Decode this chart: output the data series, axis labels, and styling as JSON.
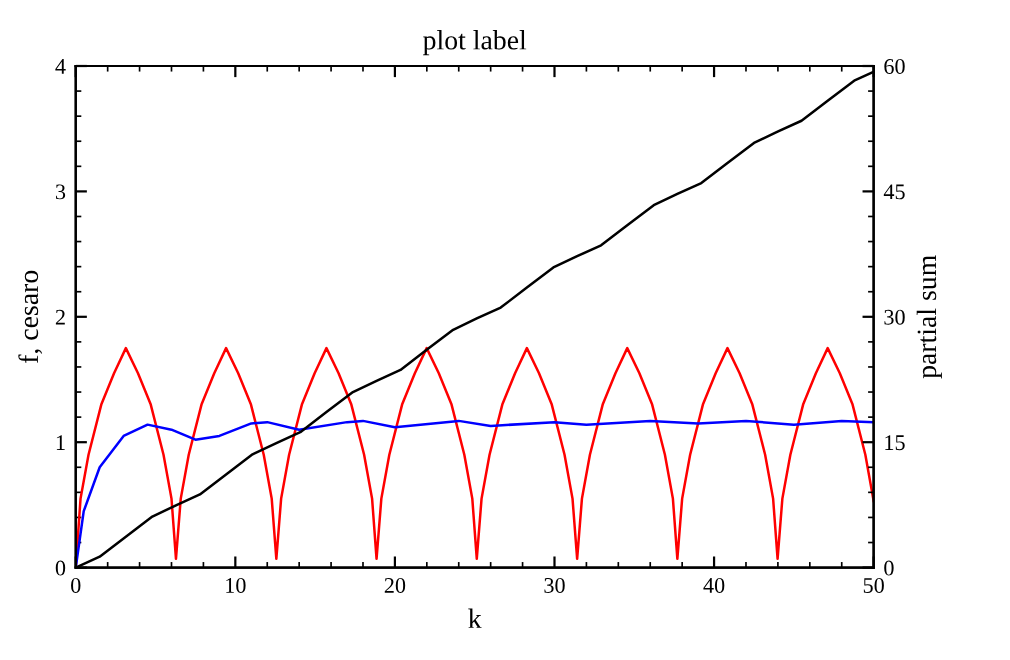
{
  "chart_data": {
    "type": "line",
    "title": "plot label",
    "xlabel": "k",
    "ylabel": "f, cesaro",
    "y2label": "partial sum",
    "xlim": [
      0,
      50
    ],
    "xticks": [
      0,
      10,
      20,
      30,
      40,
      50
    ],
    "ylim": [
      0,
      4
    ],
    "yticks": [
      0,
      1,
      2,
      3,
      4
    ],
    "y2lim": [
      0,
      60
    ],
    "y2ticks": [
      0,
      15,
      30,
      45,
      60
    ],
    "grid": false,
    "legend": false,
    "marker": "none",
    "line_style": "solid",
    "series": [
      {
        "color": "#ff0000",
        "x": [
          0,
          0.3,
          0.8,
          1.6,
          2.4,
          3.14,
          3.9,
          4.7,
          5.5,
          6.0,
          6.28,
          6.58,
          7.08,
          7.88,
          8.68,
          9.42,
          10.18,
          10.98,
          11.78,
          12.28,
          12.57,
          12.87,
          13.37,
          14.17,
          14.97,
          15.71,
          16.47,
          17.27,
          18.07,
          18.57,
          18.85,
          19.15,
          19.65,
          20.45,
          21.25,
          21.99,
          22.75,
          23.55,
          24.35,
          24.85,
          25.13,
          25.43,
          25.93,
          26.73,
          27.53,
          28.27,
          29.03,
          29.83,
          30.63,
          31.13,
          31.42,
          31.72,
          32.22,
          33.02,
          33.82,
          34.56,
          35.32,
          36.12,
          36.92,
          37.42,
          37.7,
          38.0,
          38.5,
          39.3,
          40.1,
          40.84,
          41.6,
          42.4,
          43.2,
          43.7,
          43.98,
          44.28,
          44.78,
          45.58,
          46.38,
          47.12,
          47.88,
          48.68,
          49.48,
          50
        ],
        "values": [
          0,
          0.55,
          0.9,
          1.3,
          1.55,
          1.75,
          1.55,
          1.3,
          0.9,
          0.55,
          0.07,
          0.55,
          0.9,
          1.3,
          1.55,
          1.75,
          1.55,
          1.3,
          0.9,
          0.55,
          0.07,
          0.55,
          0.9,
          1.3,
          1.55,
          1.75,
          1.55,
          1.3,
          0.9,
          0.55,
          0.07,
          0.55,
          0.9,
          1.3,
          1.55,
          1.75,
          1.55,
          1.3,
          0.9,
          0.55,
          0.07,
          0.55,
          0.9,
          1.3,
          1.55,
          1.75,
          1.55,
          1.3,
          0.9,
          0.55,
          0.07,
          0.55,
          0.9,
          1.3,
          1.55,
          1.75,
          1.55,
          1.3,
          0.9,
          0.55,
          0.07,
          0.55,
          0.9,
          1.3,
          1.55,
          1.75,
          1.55,
          1.3,
          0.9,
          0.55,
          0.07,
          0.55,
          0.9,
          1.3,
          1.55,
          1.75,
          1.55,
          1.3,
          0.9,
          0.53
        ]
      },
      {
        "color": "#0000ff",
        "x": [
          0,
          0.5,
          1.5,
          3,
          4.5,
          6,
          7.5,
          9,
          11,
          12,
          14,
          17,
          18,
          20,
          24,
          26,
          30,
          32,
          36,
          39,
          42,
          45,
          48,
          50
        ],
        "values": [
          0,
          0.45,
          0.8,
          1.05,
          1.14,
          1.1,
          1.02,
          1.05,
          1.15,
          1.16,
          1.1,
          1.16,
          1.17,
          1.12,
          1.17,
          1.13,
          1.16,
          1.14,
          1.17,
          1.15,
          1.17,
          1.14,
          1.17,
          1.16
        ]
      },
      {
        "color": "#000000",
        "axis": "y2",
        "x": [
          0,
          1.5,
          3.14,
          4.8,
          6.28,
          7.78,
          9.42,
          11.08,
          12.57,
          14.07,
          15.71,
          17.37,
          18.85,
          20.35,
          21.99,
          23.65,
          25.13,
          26.63,
          28.27,
          29.93,
          31.42,
          32.92,
          34.56,
          36.22,
          37.7,
          39.2,
          40.84,
          42.5,
          43.98,
          45.48,
          47.12,
          48.78,
          50
        ],
        "values": [
          0,
          1.3,
          3.7,
          6.1,
          7.45,
          8.75,
          11.15,
          13.55,
          14.9,
          16.2,
          18.6,
          21.0,
          22.35,
          23.65,
          26.05,
          28.45,
          29.8,
          31.1,
          33.5,
          35.9,
          37.25,
          38.55,
          40.95,
          43.35,
          44.7,
          46.0,
          48.4,
          50.8,
          52.15,
          53.45,
          55.85,
          58.25,
          59.3
        ]
      }
    ]
  }
}
